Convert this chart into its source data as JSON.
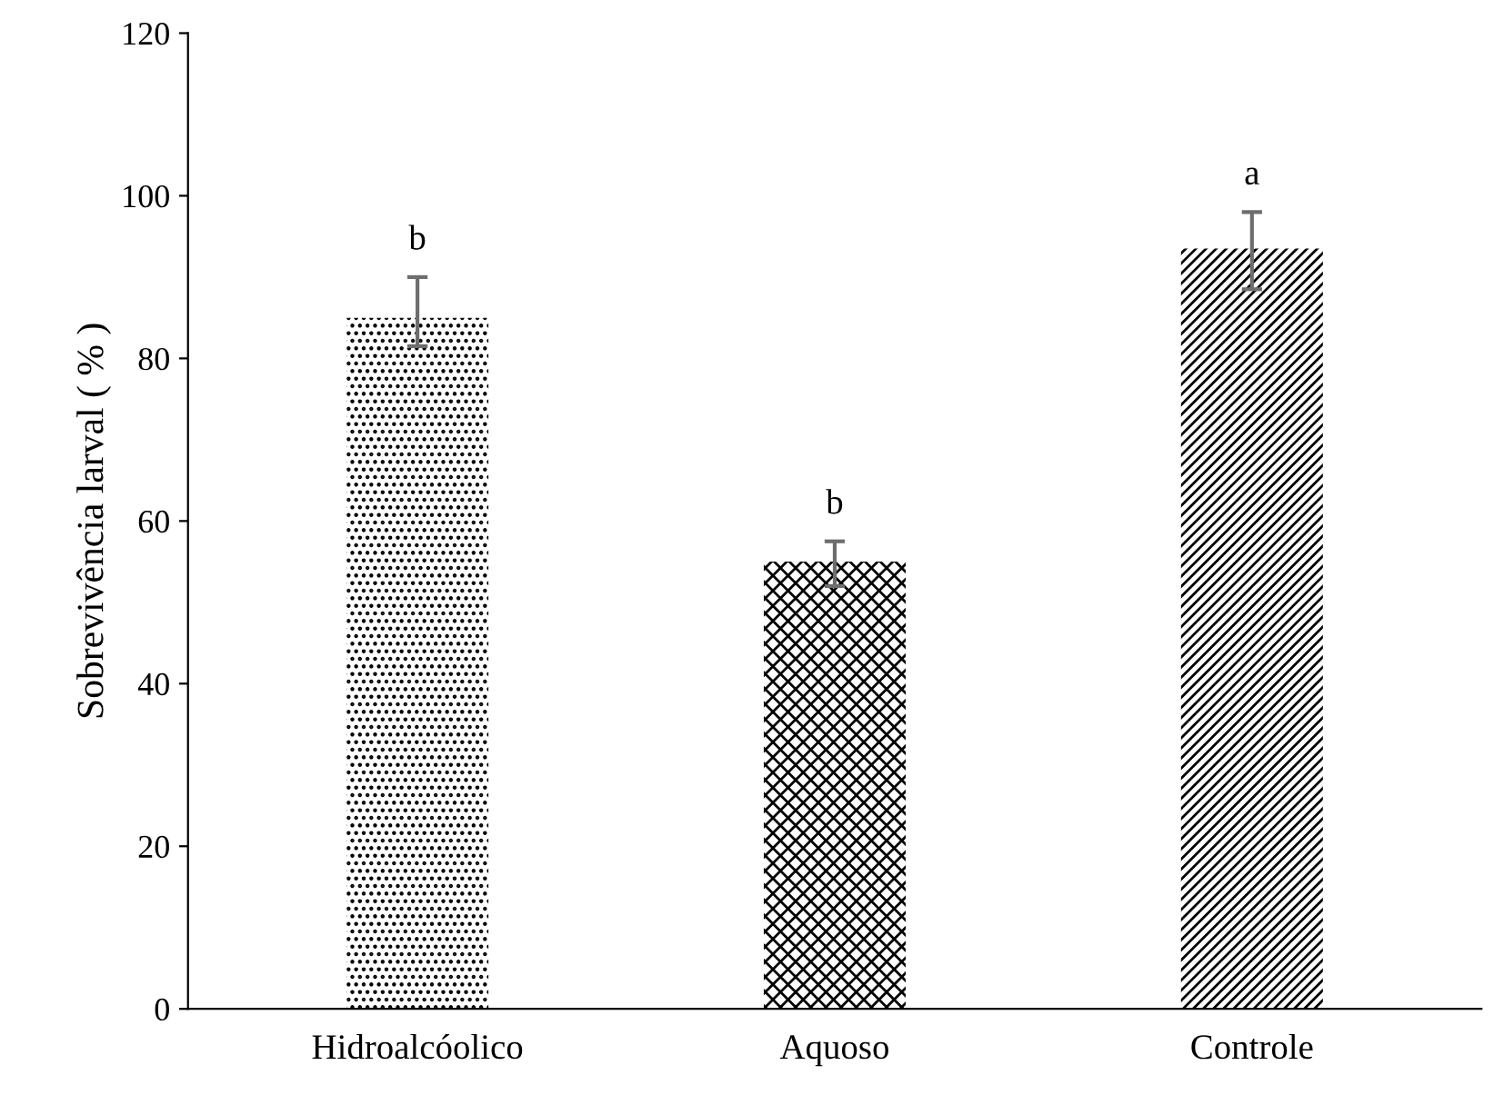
{
  "chart_data": {
    "type": "bar",
    "ylabel": "Sobrevivência larval ( % )",
    "categories": [
      "Hidroalcóolico",
      "Aquoso",
      "Controle"
    ],
    "values": [
      85,
      55,
      93.5
    ],
    "errors": [
      [
        81.5,
        90
      ],
      [
        52,
        57.5
      ],
      [
        88.5,
        98
      ]
    ],
    "colors": [
      "#000000",
      "#000000",
      "#000000"
    ],
    "ylim": [
      0,
      120
    ],
    "yticks": [
      0,
      20,
      40,
      60,
      80,
      100,
      120
    ],
    "grid": false,
    "annotations": [
      "b",
      "b",
      "a"
    ]
  }
}
